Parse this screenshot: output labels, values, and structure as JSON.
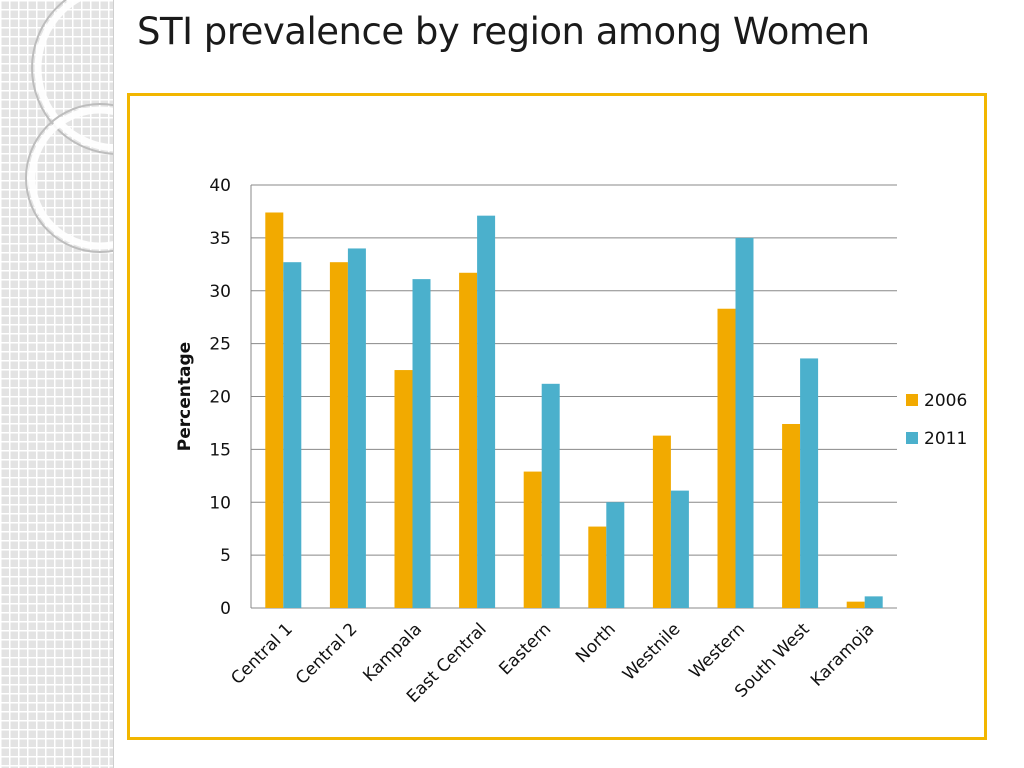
{
  "slide": {
    "title": "STI prevalence by region among Women"
  },
  "colors": {
    "s2006": "#f2aa00",
    "s2011": "#4bb0cc",
    "frame": "#f2b600",
    "grid": "#888888"
  },
  "chart_data": {
    "type": "bar",
    "title": "STI prevalence by region among Women",
    "xlabel": "",
    "ylabel": "Percentage",
    "ylim": [
      0,
      40
    ],
    "yticks": [
      0,
      5,
      10,
      15,
      20,
      25,
      30,
      35,
      40
    ],
    "grid": true,
    "legend_position": "right",
    "categories": [
      "Central 1",
      "Central 2",
      "Kampala",
      "East Central",
      "Eastern",
      "North",
      "Westnile",
      "Western",
      "South West",
      "Karamoja"
    ],
    "series": [
      {
        "name": "2006",
        "values": [
          37.4,
          32.7,
          22.5,
          31.7,
          12.9,
          7.7,
          16.3,
          28.3,
          17.4,
          0.6
        ]
      },
      {
        "name": "2011",
        "values": [
          32.7,
          34.0,
          31.1,
          37.1,
          21.2,
          10.0,
          11.1,
          35.0,
          23.6,
          1.1
        ]
      }
    ]
  }
}
